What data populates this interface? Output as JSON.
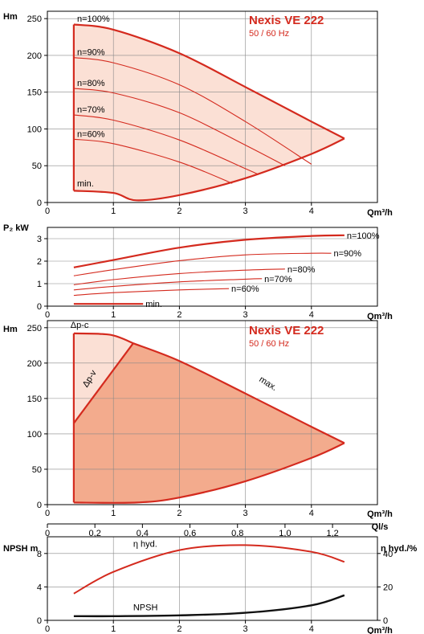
{
  "accent_color": "#d42a1e",
  "fill_light": "#fbe0d5",
  "fill_dark": "#f3ab8d",
  "chart_data": [
    {
      "type": "line",
      "id": "head-speed",
      "title": "Nexis VE 222",
      "subtitle": "50 / 60 Hz",
      "ylabel": "Hm",
      "xlabel": "Qm³/h",
      "xlim": [
        0,
        5
      ],
      "ylim": [
        0,
        260
      ],
      "xticks": [
        0,
        1,
        2,
        3,
        4
      ],
      "yticks": [
        0,
        50,
        100,
        150,
        200,
        250
      ],
      "series": [
        {
          "name": "n=100%",
          "x": [
            0.4,
            1.0,
            2.0,
            3.0,
            4.0,
            4.5
          ],
          "y": [
            242,
            235,
            203,
            157,
            110,
            87
          ]
        },
        {
          "name": "n=90%",
          "x": [
            0.4,
            1.0,
            2.0,
            3.0,
            4.0
          ],
          "y": [
            197,
            190,
            160,
            110,
            52
          ]
        },
        {
          "name": "n=80%",
          "x": [
            0.4,
            1.0,
            2.0,
            3.0,
            3.6
          ],
          "y": [
            155,
            149,
            122,
            78,
            50
          ]
        },
        {
          "name": "n=70%",
          "x": [
            0.4,
            1.0,
            2.0,
            3.0,
            3.2
          ],
          "y": [
            119,
            112,
            85,
            46,
            38
          ]
        },
        {
          "name": "n=60%",
          "x": [
            0.4,
            1.0,
            2.0,
            2.8
          ],
          "y": [
            86,
            80,
            55,
            26
          ]
        },
        {
          "name": "min.",
          "x": [
            0.4,
            1.0,
            1.35,
            2.0,
            3.0,
            4.0,
            4.5
          ],
          "y": [
            16,
            13,
            3,
            10,
            33,
            66,
            87
          ]
        }
      ]
    },
    {
      "type": "line",
      "id": "power",
      "ylabel": "P₂ kW",
      "xlabel": "Qm³/h",
      "xlim": [
        0,
        5
      ],
      "ylim": [
        0,
        3.5
      ],
      "xticks": [
        0,
        1,
        2,
        3,
        4
      ],
      "yticks": [
        0,
        1,
        2,
        3
      ],
      "series": [
        {
          "name": "n=100%",
          "x": [
            0.4,
            1.0,
            2.0,
            3.0,
            4.0,
            4.5
          ],
          "y": [
            1.72,
            2.05,
            2.6,
            2.95,
            3.12,
            3.15
          ]
        },
        {
          "name": "n=90%",
          "x": [
            0.4,
            1.0,
            2.0,
            3.0,
            4.0,
            4.3
          ],
          "y": [
            1.35,
            1.62,
            2.02,
            2.28,
            2.35,
            2.35
          ]
        },
        {
          "name": "n=80%",
          "x": [
            0.4,
            1.0,
            2.0,
            3.0,
            3.6
          ],
          "y": [
            0.95,
            1.18,
            1.45,
            1.6,
            1.65
          ]
        },
        {
          "name": "n=70%",
          "x": [
            0.4,
            1.0,
            2.0,
            3.0,
            3.25
          ],
          "y": [
            0.72,
            0.88,
            1.08,
            1.2,
            1.22
          ]
        },
        {
          "name": "n=60%",
          "x": [
            0.4,
            1.0,
            2.0,
            2.75
          ],
          "y": [
            0.48,
            0.6,
            0.72,
            0.78
          ]
        },
        {
          "name": "min.",
          "x": [
            0.4,
            1.45
          ],
          "y": [
            0.1,
            0.1
          ]
        }
      ]
    },
    {
      "type": "area",
      "id": "head-control",
      "title": "Nexis VE 222",
      "subtitle": "50 / 60 Hz",
      "ylabel": "Hm",
      "xlabel": "Qm³/h",
      "xlim": [
        0,
        5
      ],
      "ylim": [
        0,
        260
      ],
      "xticks": [
        0,
        1,
        2,
        3,
        4
      ],
      "yticks": [
        0,
        50,
        100,
        150,
        200,
        250
      ],
      "labels": {
        "dpc": "Δp-c",
        "dpv": "Δp-v",
        "max": "max."
      },
      "dpc": {
        "x": [
          0.4,
          0.95,
          1.3
        ],
        "y": [
          242,
          240,
          228
        ]
      },
      "dpv": {
        "x": [
          0.4,
          1.3
        ],
        "y": [
          115,
          228
        ]
      },
      "max": {
        "x": [
          1.3,
          2.0,
          3.0,
          4.0,
          4.5
        ],
        "y": [
          228,
          203,
          157,
          110,
          87
        ]
      },
      "min": {
        "x": [
          0.4,
          1.35,
          2.0,
          3.0,
          4.0,
          4.5
        ],
        "y": [
          3,
          3,
          10,
          33,
          66,
          87
        ]
      }
    },
    {
      "type": "line",
      "id": "npsh-efficiency",
      "ylabel_left": "NPSH m",
      "ylabel_right": "η hyd./%",
      "xlabel": "Qm³/h",
      "xlabel_top": "Ql/s",
      "xlim": [
        0,
        5
      ],
      "ylim_left": [
        0,
        10
      ],
      "ylim_right": [
        0,
        50
      ],
      "xticks": [
        0,
        1,
        2,
        3,
        4
      ],
      "xticks_top": [
        "0",
        "0,2",
        "0,4",
        "0,6",
        "0,8",
        "1,0",
        "1,2"
      ],
      "yticks_left": [
        0,
        4,
        8
      ],
      "yticks_right": [
        0,
        20,
        40
      ],
      "series": [
        {
          "name": "η hyd.",
          "axis": "right",
          "x": [
            0.4,
            1.0,
            2.0,
            3.0,
            4.0,
            4.5
          ],
          "y": [
            16,
            29,
            42,
            45,
            41,
            35
          ]
        },
        {
          "name": "NPSH",
          "axis": "left",
          "x": [
            0.4,
            1.0,
            2.0,
            3.0,
            4.0,
            4.5
          ],
          "y": [
            0.5,
            0.5,
            0.6,
            0.9,
            1.8,
            3.0
          ]
        }
      ]
    }
  ]
}
